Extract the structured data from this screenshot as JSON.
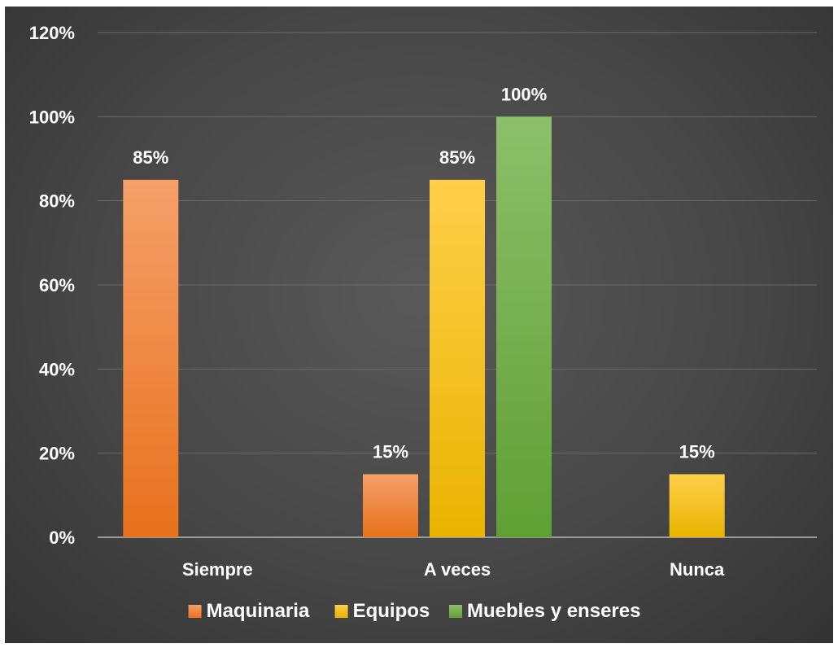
{
  "chart_data": {
    "type": "bar",
    "categories": [
      "Siempre",
      "A veces",
      "Nunca"
    ],
    "series": [
      {
        "name": "Maquinaria",
        "values": [
          85,
          15,
          null
        ],
        "labels": [
          "85%",
          "15%",
          ""
        ],
        "color_top": "#F4A06A",
        "color_bottom": "#E8711C"
      },
      {
        "name": "Equipos",
        "values": [
          null,
          85,
          15
        ],
        "labels": [
          "",
          "85%",
          "15%"
        ],
        "color_top": "#FFCF4A",
        "color_bottom": "#E8B400"
      },
      {
        "name": "Muebles y enseres",
        "values": [
          null,
          100,
          null
        ],
        "labels": [
          "",
          "100%",
          ""
        ],
        "color_top": "#8CBF6A",
        "color_bottom": "#5FA033"
      }
    ],
    "yticks": [
      "0%",
      "20%",
      "40%",
      "60%",
      "80%",
      "100%",
      "120%"
    ],
    "ylim": [
      0,
      120
    ],
    "title": "",
    "xlabel": "",
    "ylabel": "",
    "grid": true,
    "legend_position": "bottom"
  }
}
